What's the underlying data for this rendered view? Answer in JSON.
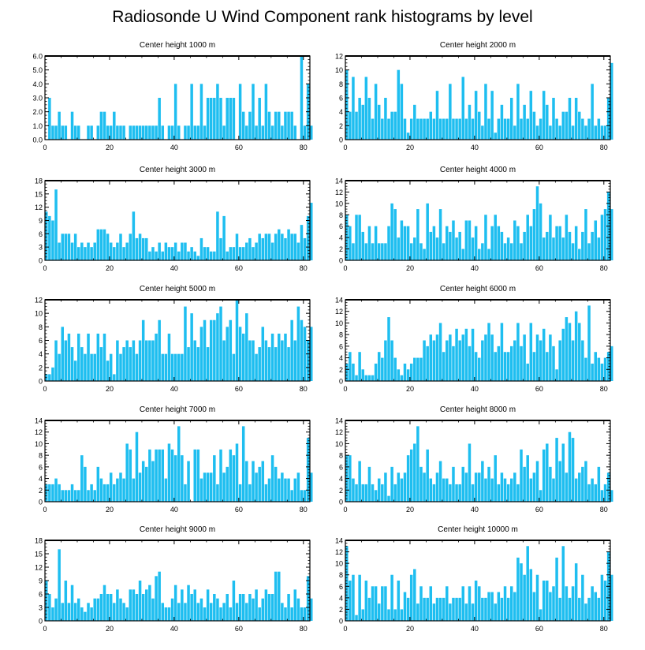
{
  "title": "Radiosonde U Wind Component rank histograms by level",
  "bar_color": "#1ebef0",
  "chart_data": [
    {
      "type": "bar",
      "title": "Center height 1000 m",
      "xlim": [
        0,
        82
      ],
      "ylim": [
        0,
        6
      ],
      "yticks": [
        0,
        1,
        2,
        3,
        4,
        5,
        6
      ],
      "ytick_labels": [
        "0.0",
        "1.0",
        "2.0",
        "3.0",
        "4.0",
        "5.0",
        "6.0"
      ],
      "xticks": [
        0,
        20,
        40,
        60,
        80
      ],
      "xtick_labels": [
        "0",
        "20",
        "40",
        "60",
        "80"
      ],
      "values": [
        0,
        3,
        1,
        1,
        2,
        1,
        1,
        0,
        2,
        1,
        1,
        0,
        0,
        1,
        1,
        0,
        1,
        2,
        2,
        1,
        1,
        2,
        1,
        1,
        1,
        0,
        1,
        1,
        1,
        1,
        1,
        1,
        1,
        1,
        1,
        3,
        1,
        0,
        1,
        1,
        4,
        1,
        0,
        1,
        1,
        4,
        1,
        1,
        4,
        1,
        3,
        3,
        3,
        4,
        3,
        1,
        3,
        3,
        3,
        0,
        4,
        2,
        1,
        2,
        4,
        1,
        3,
        1,
        4,
        2,
        1,
        2,
        2,
        1,
        2,
        2,
        2,
        1,
        0,
        6,
        1,
        4,
        1
      ]
    },
    {
      "type": "bar",
      "title": "Center height 2000 m",
      "xlim": [
        0,
        82
      ],
      "ylim": [
        0,
        12
      ],
      "yticks": [
        0,
        2,
        4,
        6,
        8,
        10,
        12
      ],
      "ytick_labels": [
        "0",
        "2",
        "4",
        "6",
        "8",
        "10",
        "12"
      ],
      "xticks": [
        0,
        20,
        40,
        60,
        80
      ],
      "xtick_labels": [
        "0",
        "20",
        "40",
        "60",
        "80"
      ],
      "values": [
        10,
        4,
        9,
        4,
        6,
        5,
        9,
        6,
        3,
        8,
        5,
        3,
        6,
        3,
        4,
        4,
        10,
        8,
        3,
        1,
        3,
        5,
        3,
        3,
        3,
        3,
        4,
        3,
        7,
        3,
        3,
        3,
        8,
        3,
        3,
        3,
        9,
        3,
        5,
        3,
        7,
        4,
        2,
        8,
        3,
        7,
        1,
        3,
        5,
        3,
        3,
        6,
        2,
        8,
        3,
        5,
        3,
        7,
        4,
        2,
        3,
        7,
        5,
        2,
        6,
        3,
        2,
        4,
        4,
        6,
        2,
        6,
        4,
        3,
        2,
        3,
        8,
        2,
        3,
        2,
        2,
        6,
        11
      ]
    },
    {
      "type": "bar",
      "title": "Center height 3000 m",
      "xlim": [
        0,
        82
      ],
      "ylim": [
        0,
        18
      ],
      "yticks": [
        0,
        3,
        6,
        9,
        12,
        15,
        18
      ],
      "ytick_labels": [
        "0",
        "3",
        "6",
        "9",
        "12",
        "15",
        "18"
      ],
      "xticks": [
        0,
        20,
        40,
        60,
        80
      ],
      "xtick_labels": [
        "0",
        "20",
        "40",
        "60",
        "80"
      ],
      "values": [
        11,
        10,
        9,
        16,
        4,
        6,
        6,
        6,
        4,
        6,
        3,
        4,
        3,
        4,
        3,
        4,
        7,
        7,
        7,
        6,
        4,
        3,
        4,
        6,
        3,
        4,
        6,
        11,
        5,
        6,
        5,
        5,
        2,
        3,
        2,
        4,
        2,
        4,
        3,
        3,
        4,
        2,
        4,
        4,
        2,
        3,
        2,
        1,
        5,
        3,
        3,
        2,
        2,
        11,
        5,
        10,
        2,
        3,
        3,
        6,
        3,
        3,
        4,
        5,
        3,
        4,
        6,
        5,
        6,
        6,
        4,
        6,
        7,
        6,
        5,
        7,
        6,
        6,
        4,
        8,
        5,
        10,
        13
      ]
    },
    {
      "type": "bar",
      "title": "Center height 4000 m",
      "xlim": [
        0,
        82
      ],
      "ylim": [
        0,
        14
      ],
      "yticks": [
        0,
        2,
        4,
        6,
        8,
        10,
        12,
        14
      ],
      "ytick_labels": [
        "0",
        "2",
        "4",
        "6",
        "8",
        "10",
        "12",
        "14"
      ],
      "xticks": [
        0,
        20,
        40,
        60,
        80
      ],
      "xtick_labels": [
        "0",
        "20",
        "40",
        "60",
        "80"
      ],
      "values": [
        8,
        6,
        3,
        8,
        8,
        5,
        3,
        6,
        3,
        6,
        3,
        3,
        3,
        6,
        10,
        9,
        4,
        7,
        6,
        6,
        3,
        4,
        9,
        3,
        2,
        10,
        5,
        6,
        4,
        9,
        3,
        6,
        5,
        7,
        4,
        5,
        2,
        7,
        7,
        4,
        6,
        2,
        3,
        8,
        2,
        6,
        8,
        6,
        5,
        3,
        4,
        3,
        7,
        6,
        3,
        5,
        8,
        6,
        9,
        13,
        10,
        4,
        5,
        8,
        4,
        6,
        6,
        4,
        8,
        5,
        3,
        6,
        2,
        5,
        9,
        3,
        5,
        7,
        4,
        8,
        9,
        12,
        9
      ]
    },
    {
      "type": "bar",
      "title": "Center height 5000 m",
      "xlim": [
        0,
        82
      ],
      "ylim": [
        0,
        12
      ],
      "yticks": [
        0,
        2,
        4,
        6,
        8,
        10,
        12
      ],
      "ytick_labels": [
        "0",
        "2",
        "4",
        "6",
        "8",
        "10",
        "12"
      ],
      "xticks": [
        0,
        20,
        40,
        60,
        80
      ],
      "xtick_labels": [
        "0",
        "20",
        "40",
        "60",
        "80"
      ],
      "values": [
        1,
        1,
        2,
        6,
        4,
        8,
        6,
        7,
        5,
        3,
        7,
        5,
        4,
        7,
        4,
        4,
        7,
        5,
        7,
        3,
        4,
        1,
        6,
        4,
        5,
        6,
        5,
        6,
        4,
        6,
        9,
        6,
        6,
        6,
        7,
        9,
        4,
        4,
        7,
        4,
        4,
        4,
        4,
        11,
        5,
        10,
        6,
        5,
        8,
        9,
        5,
        9,
        9,
        10,
        11,
        6,
        8,
        9,
        4,
        12,
        8,
        7,
        10,
        6,
        6,
        4,
        5,
        8,
        6,
        5,
        7,
        5,
        7,
        6,
        7,
        5,
        9,
        6,
        11,
        9,
        8,
        6,
        8
      ]
    },
    {
      "type": "bar",
      "title": "Center height 6000 m",
      "xlim": [
        0,
        82
      ],
      "ylim": [
        0,
        14
      ],
      "yticks": [
        0,
        2,
        4,
        6,
        8,
        10,
        12,
        14
      ],
      "ytick_labels": [
        "0",
        "2",
        "4",
        "6",
        "8",
        "10",
        "12",
        "14"
      ],
      "xticks": [
        0,
        20,
        40,
        60,
        80
      ],
      "xtick_labels": [
        "0",
        "20",
        "40",
        "60",
        "80"
      ],
      "values": [
        3,
        5,
        3,
        1,
        5,
        2,
        1,
        1,
        1,
        3,
        5,
        4,
        7,
        11,
        7,
        4,
        2,
        1,
        3,
        2,
        3,
        4,
        4,
        4,
        7,
        6,
        8,
        7,
        8,
        10,
        5,
        7,
        8,
        6,
        9,
        7,
        8,
        9,
        6,
        9,
        5,
        4,
        7,
        8,
        10,
        8,
        5,
        6,
        10,
        5,
        5,
        6,
        7,
        10,
        6,
        8,
        3,
        10,
        5,
        8,
        7,
        9,
        5,
        8,
        6,
        2,
        7,
        9,
        11,
        10,
        7,
        12,
        10,
        7,
        4,
        13,
        3,
        5,
        4,
        3,
        4,
        5,
        6
      ]
    },
    {
      "type": "bar",
      "title": "Center height 7000 m",
      "xlim": [
        0,
        82
      ],
      "ylim": [
        0,
        14
      ],
      "yticks": [
        0,
        2,
        4,
        6,
        8,
        10,
        12,
        14
      ],
      "ytick_labels": [
        "0",
        "2",
        "4",
        "6",
        "8",
        "10",
        "12",
        "14"
      ],
      "xticks": [
        0,
        20,
        40,
        60,
        80
      ],
      "xtick_labels": [
        "0",
        "20",
        "40",
        "60",
        "80"
      ],
      "values": [
        3,
        3,
        3,
        4,
        3,
        2,
        2,
        2,
        3,
        2,
        2,
        8,
        6,
        2,
        3,
        2,
        6,
        4,
        3,
        3,
        5,
        3,
        4,
        5,
        4,
        10,
        9,
        4,
        12,
        5,
        7,
        6,
        9,
        7,
        9,
        9,
        9,
        4,
        10,
        9,
        8,
        13,
        8,
        3,
        7,
        0,
        9,
        9,
        4,
        5,
        5,
        5,
        8,
        3,
        9,
        5,
        6,
        9,
        8,
        10,
        3,
        13,
        7,
        3,
        7,
        5,
        6,
        7,
        3,
        4,
        8,
        6,
        4,
        5,
        4,
        4,
        2,
        4,
        5,
        2,
        2,
        11,
        5
      ]
    },
    {
      "type": "bar",
      "title": "Center height 8000 m",
      "xlim": [
        0,
        82
      ],
      "ylim": [
        0,
        14
      ],
      "yticks": [
        0,
        2,
        4,
        6,
        8,
        10,
        12,
        14
      ],
      "ytick_labels": [
        "0",
        "2",
        "4",
        "6",
        "8",
        "10",
        "12",
        "14"
      ],
      "xticks": [
        0,
        20,
        40,
        60,
        80
      ],
      "xtick_labels": [
        "0",
        "20",
        "40",
        "60",
        "80"
      ],
      "values": [
        8,
        8,
        4,
        3,
        7,
        3,
        3,
        6,
        3,
        2,
        4,
        3,
        5,
        1,
        6,
        3,
        5,
        4,
        5,
        8,
        9,
        10,
        13,
        6,
        5,
        9,
        4,
        3,
        5,
        7,
        4,
        4,
        3,
        6,
        3,
        3,
        6,
        5,
        10,
        3,
        5,
        5,
        7,
        4,
        6,
        4,
        8,
        3,
        5,
        4,
        3,
        4,
        5,
        3,
        9,
        6,
        8,
        4,
        5,
        7,
        2,
        9,
        10,
        6,
        4,
        11,
        7,
        10,
        5,
        12,
        11,
        4,
        5,
        6,
        7,
        3,
        4,
        3,
        6,
        2,
        3,
        5,
        2
      ]
    },
    {
      "type": "bar",
      "title": "Center height 9000 m",
      "xlim": [
        0,
        82
      ],
      "ylim": [
        0,
        18
      ],
      "yticks": [
        0,
        3,
        6,
        9,
        12,
        15,
        18
      ],
      "ytick_labels": [
        "0",
        "3",
        "6",
        "9",
        "12",
        "15",
        "18"
      ],
      "xticks": [
        0,
        20,
        40,
        60,
        80
      ],
      "xtick_labels": [
        "0",
        "20",
        "40",
        "60",
        "80"
      ],
      "values": [
        9,
        6,
        3,
        5,
        16,
        4,
        9,
        4,
        8,
        4,
        5,
        3,
        2,
        4,
        3,
        5,
        5,
        6,
        8,
        6,
        6,
        4,
        7,
        5,
        4,
        3,
        7,
        7,
        6,
        9,
        6,
        7,
        8,
        5,
        10,
        11,
        4,
        3,
        3,
        5,
        8,
        4,
        7,
        4,
        8,
        6,
        7,
        4,
        5,
        3,
        7,
        4,
        6,
        5,
        3,
        4,
        6,
        3,
        9,
        4,
        6,
        6,
        4,
        6,
        5,
        7,
        3,
        5,
        7,
        6,
        6,
        11,
        11,
        4,
        3,
        6,
        3,
        7,
        5,
        3,
        3,
        10,
        5
      ]
    },
    {
      "type": "bar",
      "title": "Center height 10000 m",
      "xlim": [
        0,
        82
      ],
      "ylim": [
        0,
        14
      ],
      "yticks": [
        0,
        2,
        4,
        6,
        8,
        10,
        12,
        14
      ],
      "ytick_labels": [
        "0",
        "2",
        "4",
        "6",
        "8",
        "10",
        "12",
        "14"
      ],
      "xticks": [
        0,
        20,
        40,
        60,
        80
      ],
      "xtick_labels": [
        "0",
        "20",
        "40",
        "60",
        "80"
      ],
      "values": [
        13,
        7,
        8,
        1,
        8,
        2,
        7,
        4,
        6,
        6,
        3,
        6,
        6,
        2,
        8,
        2,
        7,
        2,
        5,
        4,
        8,
        9,
        3,
        6,
        4,
        4,
        6,
        3,
        4,
        4,
        4,
        6,
        3,
        4,
        4,
        4,
        6,
        3,
        6,
        3,
        7,
        6,
        4,
        4,
        5,
        5,
        3,
        5,
        4,
        6,
        4,
        6,
        5,
        11,
        10,
        8,
        13,
        9,
        5,
        8,
        2,
        7,
        7,
        5,
        6,
        11,
        4,
        13,
        6,
        4,
        6,
        10,
        4,
        8,
        3,
        4,
        6,
        5,
        4,
        8,
        7,
        12,
        8
      ]
    }
  ]
}
